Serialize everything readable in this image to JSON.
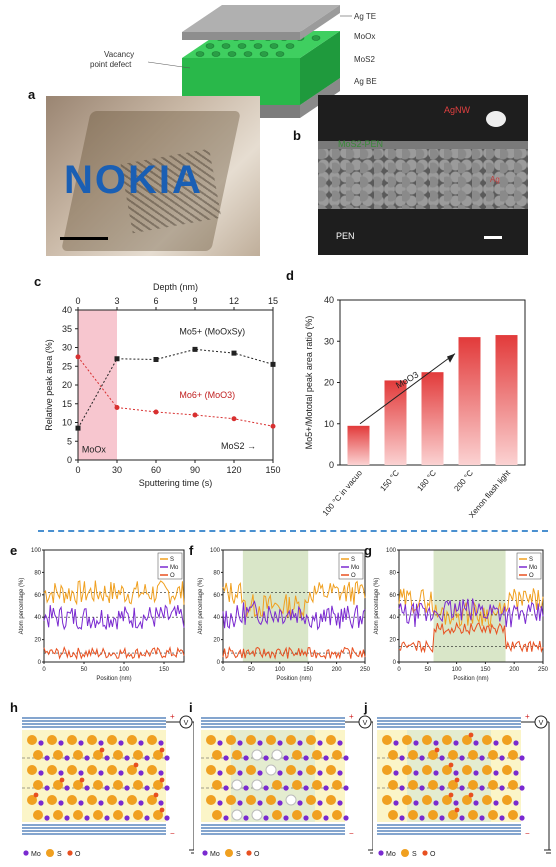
{
  "panel_labels": {
    "a": "a",
    "b": "b",
    "c": "c",
    "d": "d",
    "e": "e",
    "f": "f",
    "g": "g",
    "h": "h",
    "i": "i",
    "j": "j"
  },
  "device": {
    "layers": [
      "Ag TE",
      "MoOx",
      "MoS2",
      "Ag BE"
    ],
    "defect_label_line1": "Vacancy",
    "defect_label_line2": "point defect"
  },
  "photo": {
    "logo_text": "NOKIA"
  },
  "sem": {
    "label_top": "AgNW",
    "label_layer": "MoS2-PEN",
    "label_right": "Ag",
    "label_bottom": "PEN"
  },
  "colors": {
    "S": "#f0a020",
    "Mo": "#7a2ad0",
    "O": "#e85020",
    "pink": "#f7c6cf",
    "red_bar": "#e23a3a",
    "green_shade": "#c9dcb0"
  },
  "chart_data": [
    {
      "id": "c",
      "type": "line",
      "xlabel": "Sputtering time (s)",
      "x2label": "Depth (nm)",
      "ylabel": "Relative peak area (%)",
      "x": [
        0,
        30,
        60,
        90,
        120,
        150
      ],
      "x_ticks": [
        "0",
        "30",
        "60",
        "90",
        "120",
        "150"
      ],
      "x2_ticks": [
        "0",
        "3",
        "6",
        "9",
        "12",
        "15"
      ],
      "ylim": [
        0,
        40
      ],
      "y_ticks": [
        "0",
        "5",
        "10",
        "15",
        "20",
        "25",
        "30",
        "35",
        "40"
      ],
      "series": [
        {
          "name": "Mo5+ (MoOxSy)",
          "values": [
            8.5,
            27,
            26.8,
            29.5,
            28.5,
            25.5
          ],
          "color": "#222"
        },
        {
          "name": "Mo6+ (MoO3)",
          "values": [
            27.5,
            14,
            12.8,
            12,
            11,
            9
          ],
          "color": "#d83030"
        }
      ],
      "annotations": {
        "shade": "MoOx",
        "mos2": "MoS2"
      }
    },
    {
      "id": "d",
      "type": "bar",
      "ylabel": "Mo5+/Mototal peak area ratio (%)",
      "categories": [
        "100 °C in vacuo",
        "150 °C",
        "180 °C",
        "200 °C",
        "Xenon flash light"
      ],
      "values": [
        9.5,
        20.5,
        22.5,
        31,
        31.5
      ],
      "ylim": [
        0,
        40
      ],
      "y_ticks": [
        "0",
        "10",
        "20",
        "30",
        "40"
      ],
      "arrow_label": "MoO3"
    },
    {
      "id": "e",
      "type": "line",
      "xlabel": "Position (nm)",
      "ylabel": "Atom percentage (%)",
      "xlim": [
        0,
        175
      ],
      "x_ticks": [
        "0",
        "50",
        "100",
        "150"
      ],
      "ylim": [
        0,
        100
      ],
      "y_ticks": [
        "0",
        "20",
        "40",
        "60",
        "80",
        "100"
      ],
      "series": [
        {
          "name": "S",
          "mean": 62
        },
        {
          "name": "Mo",
          "mean": 40
        },
        {
          "name": "O",
          "mean": 8
        }
      ]
    },
    {
      "id": "f",
      "type": "line",
      "xlabel": "Position (nm)",
      "ylabel": "Atom percentage (%)",
      "xlim": [
        0,
        250
      ],
      "x_ticks": [
        "0",
        "50",
        "100",
        "150",
        "200",
        "250"
      ],
      "ylim": [
        0,
        100
      ],
      "y_ticks": [
        "0",
        "20",
        "40",
        "60",
        "80",
        "100"
      ],
      "shade": [
        35,
        150
      ],
      "series": [
        {
          "name": "S",
          "mean": 62
        },
        {
          "name": "Mo",
          "mean": 40
        },
        {
          "name": "O",
          "mean": 8
        }
      ]
    },
    {
      "id": "g",
      "type": "line",
      "xlabel": "Position (nm)",
      "ylabel": "Atom percentage (%)",
      "xlim": [
        0,
        250
      ],
      "x_ticks": [
        "0",
        "50",
        "100",
        "150",
        "200",
        "250"
      ],
      "ylim": [
        0,
        100
      ],
      "y_ticks": [
        "0",
        "20",
        "40",
        "60",
        "80",
        "100"
      ],
      "shade": [
        60,
        185
      ],
      "series": [
        {
          "name": "S",
          "mean": 55
        },
        {
          "name": "Mo",
          "mean": 42
        },
        {
          "name": "O",
          "mean": 14
        }
      ]
    }
  ],
  "legend_bottom": {
    "Mo": "Mo",
    "S": "S",
    "O": "O"
  },
  "circuit": {
    "voltmeter": "V",
    "plus": "+",
    "minus": "−"
  }
}
